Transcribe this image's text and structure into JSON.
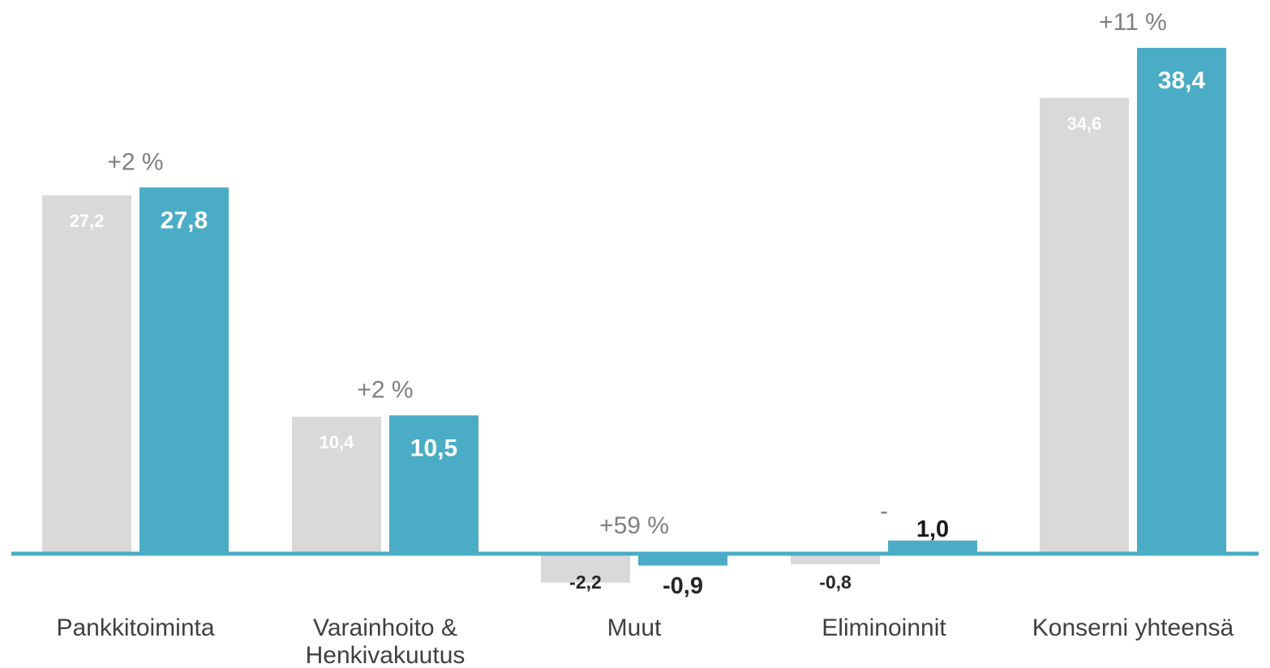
{
  "chart_data": {
    "type": "bar",
    "categories": [
      [
        "Pankkitoiminta"
      ],
      [
        "Varainhoito &",
        "Henkivakuutus"
      ],
      [
        "Muut"
      ],
      [
        "Eliminoinnit"
      ],
      [
        "Konserni yhteensä"
      ]
    ],
    "series": [
      {
        "color": "#d9d9d9",
        "values": [
          27.2,
          10.4,
          -2.2,
          -0.8,
          34.6
        ],
        "value_labels": [
          "27,2",
          "10,4",
          "-2,2",
          "-0,8",
          "34,6"
        ]
      },
      {
        "color": "#4bacc6",
        "values": [
          27.8,
          10.5,
          -0.9,
          1.0,
          38.4
        ],
        "value_labels": [
          "27,8",
          "10,5",
          "-0,9",
          "1,0",
          "38,4"
        ]
      }
    ],
    "change_labels": [
      "+2 %",
      "+2 %",
      "+59 %",
      "-",
      "+11 %"
    ],
    "ylim": [
      -2.5,
      42
    ],
    "axis_color": "#4bacc6",
    "grid": false,
    "legend": "none"
  }
}
